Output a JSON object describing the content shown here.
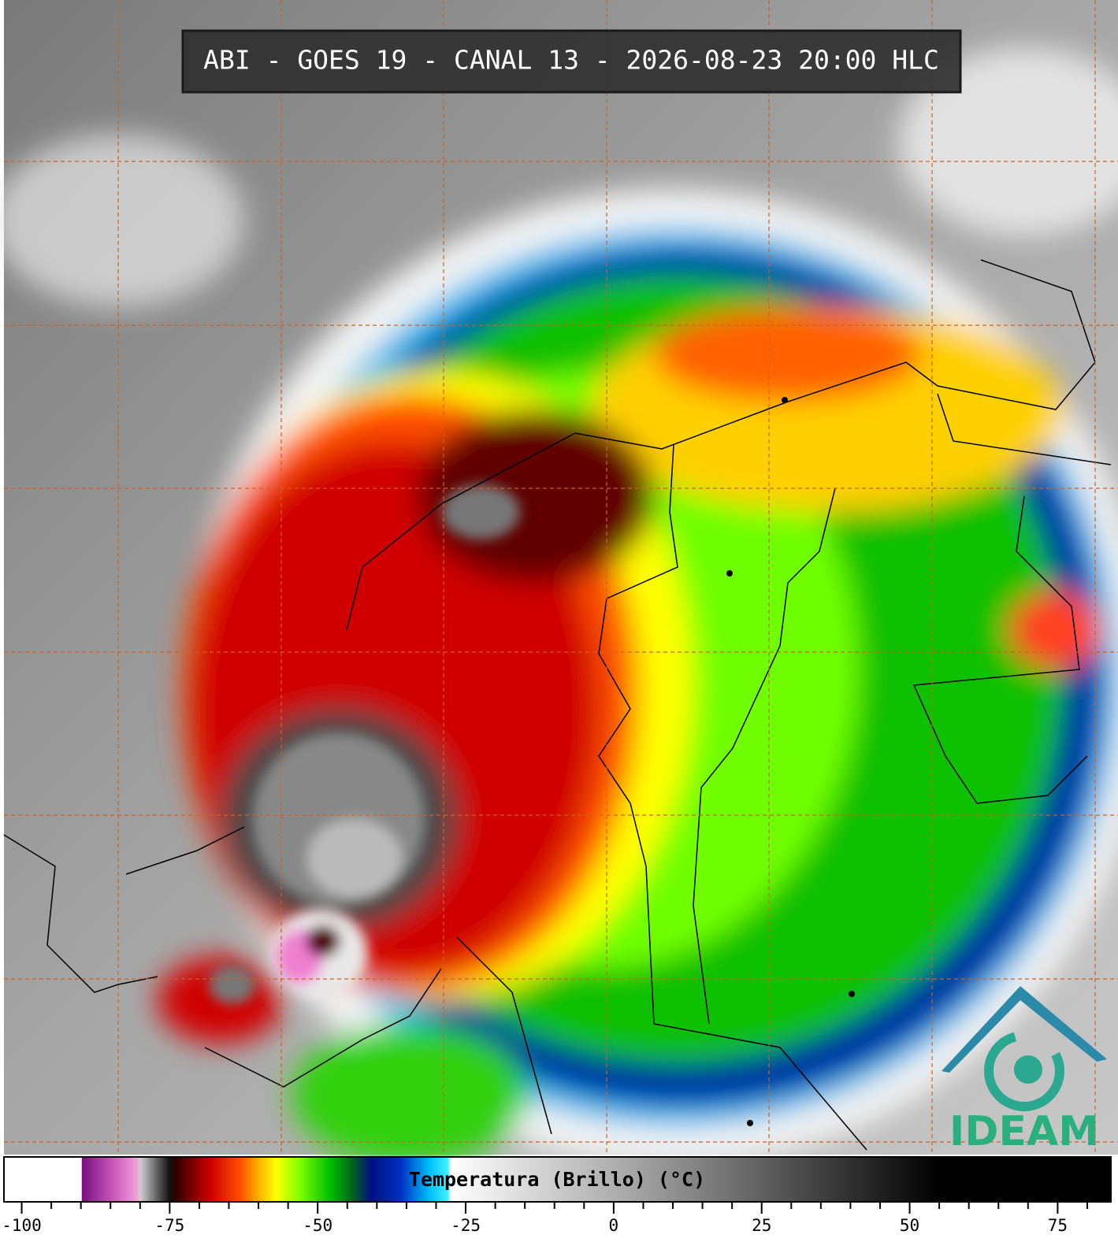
{
  "header": {
    "title": "ABI - GOES 19 - CANAL 13 - 2026-08-23 20:00 HLC"
  },
  "logo": {
    "text": "IDEAM"
  },
  "colorbar": {
    "label": "Temperatura (Brillo) (°C)",
    "range": [
      -103,
      84
    ],
    "ticks": [
      -100,
      -75,
      -50,
      -25,
      0,
      25,
      50,
      75
    ],
    "minor_ticks": [
      -95,
      -90,
      -85,
      -80,
      -70,
      -65,
      -60,
      -55,
      -45,
      -40,
      -35,
      -30,
      -20,
      -15,
      -10,
      -5,
      5,
      10,
      15,
      20,
      30,
      35,
      40,
      45,
      55,
      60,
      65,
      70,
      80
    ],
    "stops": [
      {
        "value": -103,
        "color": "#ffffff"
      },
      {
        "value": -89.9,
        "color": "#ffffff"
      },
      {
        "value": -89.8,
        "color": "#7a1080"
      },
      {
        "value": -84,
        "color": "#d060c0"
      },
      {
        "value": -80.5,
        "color": "#f0a0d8"
      },
      {
        "value": -80,
        "color": "#d0d0d0"
      },
      {
        "value": -75,
        "color": "#101010"
      },
      {
        "value": -74,
        "color": "#300000"
      },
      {
        "value": -68,
        "color": "#d00000"
      },
      {
        "value": -63,
        "color": "#ff5000"
      },
      {
        "value": -60,
        "color": "#ffb000"
      },
      {
        "value": -57,
        "color": "#ffff00"
      },
      {
        "value": -53,
        "color": "#80ff00"
      },
      {
        "value": -48,
        "color": "#00c000"
      },
      {
        "value": -44,
        "color": "#006020"
      },
      {
        "value": -41,
        "color": "#001080"
      },
      {
        "value": -36,
        "color": "#0030c0"
      },
      {
        "value": -31,
        "color": "#00c0ff"
      },
      {
        "value": -28,
        "color": "#40f0ff"
      },
      {
        "value": -27.5,
        "color": "#ffffff"
      },
      {
        "value": 5,
        "color": "#a0a0a0"
      },
      {
        "value": 40,
        "color": "#303030"
      },
      {
        "value": 55,
        "color": "#000000"
      },
      {
        "value": 84,
        "color": "#000000"
      }
    ]
  }
}
